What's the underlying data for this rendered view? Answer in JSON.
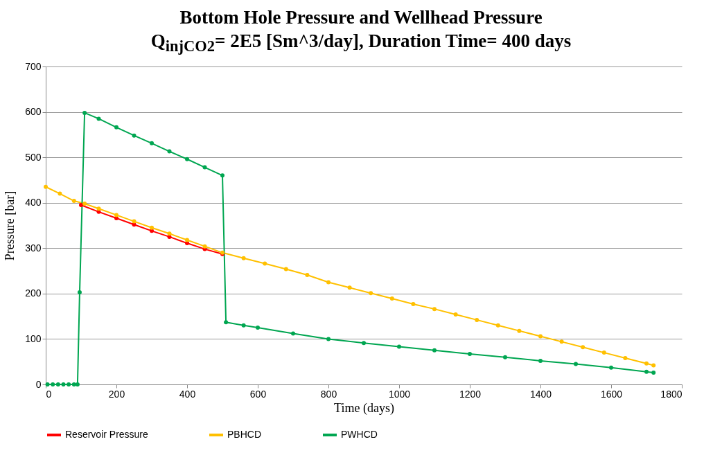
{
  "chart_data": {
    "type": "line",
    "title": "Bottom Hole Pressure and Wellhead Pressure",
    "subtitle": "Q$_{injCO2}$= 2E5 [Sm^3/day], Duration Time= 400 days",
    "xlabel": "Time  (days)",
    "ylabel": "Pressure [bar]",
    "xlim": [
      0,
      1800
    ],
    "xticks": [
      0,
      200,
      400,
      600,
      800,
      1000,
      1200,
      1400,
      1600,
      1800
    ],
    "ylim": [
      0,
      700
    ],
    "yticks": [
      0,
      100,
      200,
      300,
      400,
      500,
      600,
      700
    ],
    "grid": "y",
    "legend": "bottom",
    "marker": "circle",
    "line_style": "solid",
    "series": [
      {
        "name": "Reservoir Pressure",
        "color": "#ff0000",
        "x": [
          100,
          150,
          200,
          250,
          300,
          350,
          400,
          450,
          500
        ],
        "values": [
          395,
          380,
          366,
          352,
          338,
          325,
          311,
          298,
          287
        ]
      },
      {
        "name": "PBHCD",
        "color": "#ffc000",
        "x": [
          0,
          40,
          80,
          110,
          150,
          200,
          250,
          300,
          350,
          400,
          450,
          500,
          560,
          620,
          680,
          740,
          800,
          860,
          920,
          980,
          1040,
          1100,
          1160,
          1220,
          1280,
          1340,
          1400,
          1460,
          1520,
          1580,
          1640,
          1700,
          1720
        ],
        "values": [
          435,
          420,
          404,
          398,
          387,
          373,
          359,
          345,
          332,
          318,
          304,
          290,
          278,
          266,
          254,
          241,
          225,
          213,
          201,
          189,
          177,
          166,
          154,
          142,
          130,
          118,
          106,
          94,
          82,
          70,
          58,
          46,
          42
        ]
      },
      {
        "name": "PWHCD",
        "color": "#00a651",
        "x": [
          5,
          20,
          35,
          50,
          65,
          80,
          90,
          96,
          110,
          150,
          200,
          250,
          300,
          350,
          400,
          450,
          500,
          510,
          560,
          600,
          700,
          800,
          900,
          1000,
          1100,
          1200,
          1300,
          1400,
          1500,
          1600,
          1700,
          1720
        ],
        "values": [
          0,
          0,
          0,
          0,
          0,
          0,
          0,
          203,
          598,
          585,
          566,
          548,
          531,
          513,
          496,
          478,
          460,
          137,
          130,
          125,
          112,
          100,
          91,
          83,
          75,
          67,
          60,
          52,
          45,
          37,
          28,
          26
        ]
      }
    ]
  }
}
